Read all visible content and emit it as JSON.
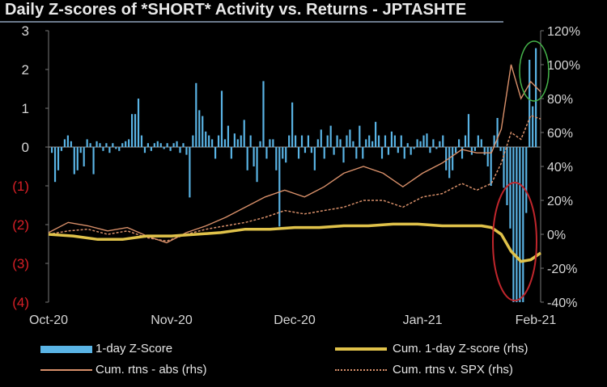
{
  "title": "Daily Z-scores of *SHORT* Activity vs. Returns - JPTASHTE",
  "colors": {
    "bars": "#5ab4e5",
    "cum_z": "#e0c24a",
    "cum_abs": "#d9906a",
    "cum_spx": "#d9906a",
    "neg_label": "#d81f26",
    "axis_text": "#d6d6d6",
    "green_circle": "#45b34a",
    "red_circle": "#c0262c"
  },
  "legend": {
    "bars": "1-day Z-Score",
    "cum_z": "Cum. 1-day Z-score (rhs)",
    "cum_abs": "Cum. rtns - abs (rhs)",
    "cum_spx": "Cum. rtns v. SPX (rhs)"
  },
  "chart_data": {
    "type": "bar+line",
    "title": "Daily Z-scores of *SHORT* Activity vs. Returns - JPTASHTE",
    "left_axis": {
      "range": [
        -4,
        3
      ],
      "ticks": [
        3,
        2,
        1,
        0,
        -1,
        -2,
        -3,
        -4
      ],
      "tick_labels": [
        "3",
        "2",
        "1",
        "0",
        "(1)",
        "(2)",
        "(3)",
        "(4)"
      ]
    },
    "right_axis": {
      "range": [
        -40,
        120
      ],
      "ticks": [
        120,
        100,
        80,
        60,
        40,
        20,
        0,
        -20,
        -40
      ],
      "tick_labels": [
        "120%",
        "100%",
        "80%",
        "60%",
        "40%",
        "20%",
        "0%",
        "-20%",
        "-40%"
      ]
    },
    "x_axis": {
      "tick_labels": [
        "Oct-20",
        "Nov-20",
        "Dec-20",
        "Jan-21",
        "Feb-21"
      ]
    },
    "series": [
      {
        "name": "1-day Z-Score",
        "kind": "bar",
        "values": [
          -0.15,
          -0.9,
          -0.6,
          -0.1,
          0.2,
          0.3,
          0.15,
          -0.7,
          -0.6,
          -0.15,
          -0.5,
          0.2,
          0.1,
          -0.7,
          0.15,
          0.1,
          -0.1,
          0.1,
          -0.15,
          0.1,
          -0.05,
          -0.1,
          0.1,
          0.15,
          0.2,
          0.85,
          0.85,
          1.25,
          0.3,
          -0.15,
          0.1,
          -0.1,
          0.1,
          0.15,
          0.1,
          -0.05,
          0.1,
          -0.1,
          0.1,
          0.15,
          -0.15,
          0.1,
          -0.2,
          -1.3,
          0.3,
          1.65,
          0.95,
          0.8,
          0.4,
          0.3,
          0.2,
          -0.3,
          0.3,
          1.45,
          0.2,
          0.55,
          -0.3,
          0.35,
          0.2,
          0.3,
          0.7,
          -0.6,
          0.3,
          -0.5,
          -0.9,
          0.15,
          1.7,
          -0.3,
          0.2,
          0.2,
          -0.6,
          -2.05,
          -0.3,
          -0.4,
          0.3,
          1.15,
          0.3,
          -0.3,
          0.3,
          -0.15,
          0.3,
          -0.15,
          -0.6,
          0.2,
          0.45,
          -0.3,
          0.3,
          0.55,
          -0.2,
          0.3,
          0.2,
          -0.4,
          0.3,
          0.45,
          0.15,
          -0.3,
          0.55,
          -0.3,
          0.2,
          0.3,
          0.15,
          0.65,
          0.3,
          -0.3,
          0.3,
          -0.2,
          0.4,
          0.3,
          -0.15,
          0.3,
          -0.3,
          0.1,
          -0.2,
          -0.05,
          0.2,
          0.15,
          0.3,
          0.35,
          -0.15,
          0.2,
          -0.05,
          0.15,
          0.3,
          -0.6,
          -0.8,
          -0.6,
          -0.15,
          0.2,
          -0.3,
          0.3,
          0.85,
          -0.2,
          -0.1,
          0.3,
          0.2,
          -0.2,
          -0.5,
          -1.0,
          0.3,
          0.75,
          -0.1,
          -1.05,
          -1.5,
          -2.1,
          -4.0,
          -4.0,
          -4.0,
          -4.0,
          -1.7,
          2.25,
          1.05,
          2.55
        ]
      },
      {
        "name": "Cum. 1-day Z-score (rhs)",
        "kind": "line",
        "x": [
          0,
          0.05,
          0.1,
          0.15,
          0.2,
          0.25,
          0.3,
          0.35,
          0.4,
          0.45,
          0.5,
          0.55,
          0.6,
          0.65,
          0.7,
          0.75,
          0.8,
          0.85,
          0.88,
          0.9,
          0.92,
          0.94,
          0.96,
          0.98,
          1.0
        ],
        "values": [
          0,
          -1,
          -3,
          -3,
          -1,
          -1,
          0,
          1,
          3,
          3,
          4,
          4,
          5,
          5,
          6,
          6,
          5,
          5,
          5,
          4,
          0,
          -10,
          -16,
          -15,
          -11
        ]
      },
      {
        "name": "Cum. rtns - abs (rhs)",
        "kind": "line",
        "x": [
          0,
          0.04,
          0.08,
          0.12,
          0.16,
          0.2,
          0.24,
          0.28,
          0.32,
          0.36,
          0.4,
          0.44,
          0.48,
          0.52,
          0.56,
          0.6,
          0.64,
          0.68,
          0.72,
          0.76,
          0.8,
          0.84,
          0.87,
          0.9,
          0.92,
          0.94,
          0.96,
          0.98,
          1.0
        ],
        "values": [
          1,
          7,
          5,
          2,
          4,
          -1,
          -5,
          1,
          5,
          10,
          16,
          22,
          26,
          22,
          28,
          36,
          40,
          36,
          28,
          36,
          42,
          50,
          48,
          48,
          62,
          100,
          80,
          90,
          84
        ]
      },
      {
        "name": "Cum. rtns v. SPX (rhs)",
        "kind": "line",
        "x": [
          0,
          0.04,
          0.08,
          0.12,
          0.16,
          0.2,
          0.24,
          0.28,
          0.32,
          0.36,
          0.4,
          0.44,
          0.48,
          0.52,
          0.56,
          0.6,
          0.64,
          0.68,
          0.72,
          0.76,
          0.8,
          0.84,
          0.87,
          0.9,
          0.92,
          0.94,
          0.96,
          0.98,
          1.0
        ],
        "values": [
          0,
          2,
          3,
          0,
          2,
          -2,
          -4,
          0,
          3,
          5,
          7,
          10,
          14,
          12,
          14,
          16,
          20,
          20,
          16,
          22,
          24,
          30,
          26,
          30,
          42,
          60,
          56,
          70,
          68
        ]
      }
    ],
    "annotations": [
      "green circle around latest positive z-score bars",
      "red circle around negative z-score bars at late Jan-21"
    ]
  }
}
